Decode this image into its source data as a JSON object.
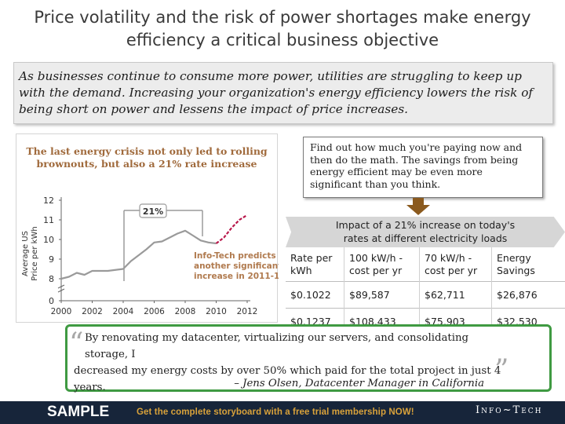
{
  "title": {
    "line1": "Price volatility and the risk of power shortages make energy",
    "line2": "efficiency a critical business objective"
  },
  "intro": "As businesses continue to consume more power, utilities are struggling to keep up with the demand. Increasing your organization's energy efficiency lowers the risk of being short on power and lessens the impact of price increases.",
  "chart_data": {
    "type": "line",
    "title_line1": "The last energy crisis not only led to rolling",
    "title_line2": "brownouts, but also a 21% rate increase",
    "ylabel_line1": "Average US",
    "ylabel_line2": "Price per kWh",
    "xlabel": "",
    "y_ticks": [
      "0",
      "8",
      "9",
      "10",
      "11",
      "12"
    ],
    "x_ticks": [
      "2000",
      "2002",
      "2004",
      "2006",
      "2008",
      "2010",
      "2012"
    ],
    "xlim": [
      2000,
      2012
    ],
    "ylim": [
      8,
      12
    ],
    "y_axis_break": true,
    "series": [
      {
        "color": "#9a9a9a",
        "x": [
          2000,
          2000.5,
          2001,
          2001.5,
          2002,
          2003,
          2004,
          2004.5,
          2005,
          2005.5,
          2006,
          2006.5,
          2007,
          2007.5,
          2008,
          2008.5,
          2009,
          2009.5,
          2010
        ],
        "y": [
          8.0,
          8.1,
          8.3,
          8.2,
          8.4,
          8.4,
          8.5,
          8.9,
          9.2,
          9.5,
          9.85,
          9.9,
          10.1,
          10.3,
          10.45,
          10.2,
          9.95,
          9.85,
          9.8
        ]
      },
      {
        "color": "#b8174a",
        "dashed": true,
        "x": [
          2010,
          2010.5,
          2011,
          2011.5,
          2012
        ],
        "y": [
          9.8,
          10.1,
          10.6,
          11.0,
          11.25
        ]
      }
    ],
    "annotations": {
      "bracket_label": "21%",
      "prediction_line1": "Info-Tech predicts",
      "prediction_line2": "another significant",
      "prediction_line3": "increase in 2011-12"
    },
    "colors": {
      "title": "#a06a3c",
      "annotation": "#b07a4e",
      "historic": "#9a9a9a",
      "forecast": "#b8174a"
    }
  },
  "callout": "Find out how much you're paying now and then do the math. The savings from being energy efficient may be even more significant than you think.",
  "impact": {
    "header_line1": "Impact of a 21% increase on today's",
    "header_line2": "rates at different electricity loads",
    "columns": [
      {
        "line1": "Rate per",
        "line2": "kWh"
      },
      {
        "line1": "100 kW/h -",
        "line2": "cost per yr"
      },
      {
        "line1": "70 kW/h -",
        "line2": "cost per yr"
      },
      {
        "line1": "Energy",
        "line2": "Savings"
      }
    ],
    "rows": [
      [
        "$0.1022",
        "$89,587",
        "$62,711",
        "$26,876"
      ],
      [
        "$0.1237",
        "$108,433",
        "$75,903",
        "$32,530"
      ]
    ]
  },
  "quote": {
    "text_line1": "By renovating my datacenter, virtualizing our servers, and consolidating storage, I",
    "text_line2": "decreased my energy costs by over 50% which paid for the total project in just 4 years.",
    "author": "– Jens Olsen, Datacenter Manager in California",
    "open_mark": "“",
    "close_mark": "”",
    "border_color": "#3f9a42"
  },
  "footer": {
    "sample": "SAMPLE",
    "cta": "Get the complete storyboard with a free trial membership NOW!",
    "logo": "Info~Tech",
    "background": "#17253a",
    "cta_color": "#d9a23a"
  }
}
